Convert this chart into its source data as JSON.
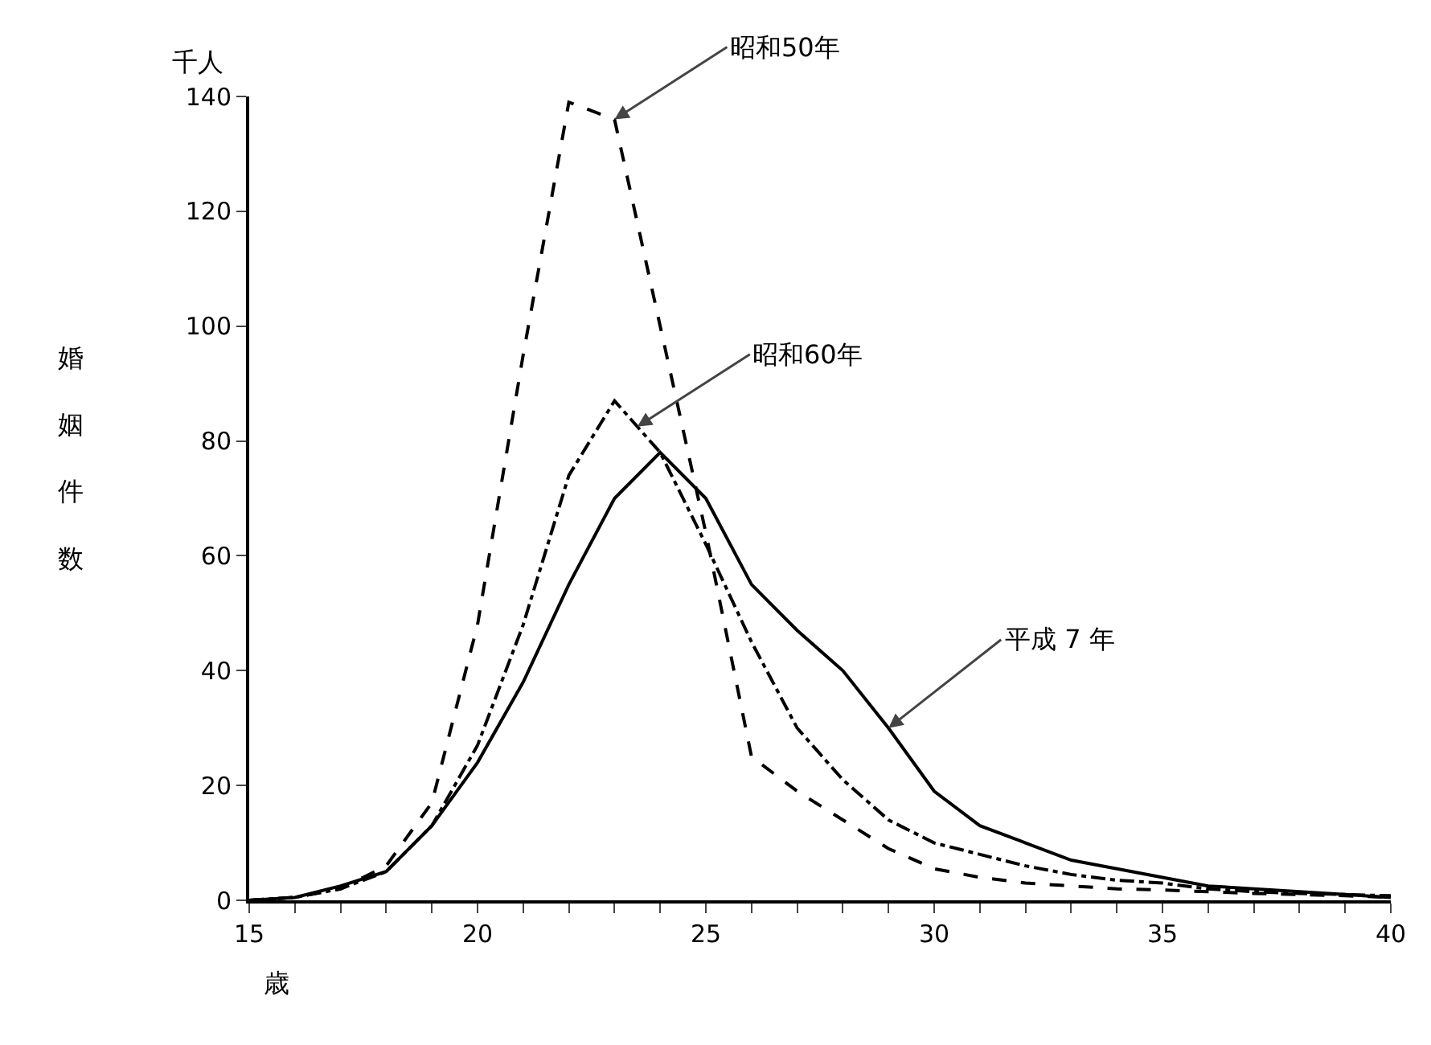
{
  "chart_data": {
    "type": "line",
    "ylabel": "婚姻件数",
    "xlabel": "歳",
    "grid": false,
    "marker": "none",
    "x": [
      15,
      16,
      17,
      18,
      19,
      20,
      21,
      22,
      23,
      24,
      25,
      26,
      27,
      28,
      29,
      30,
      31,
      32,
      33,
      34,
      35,
      36,
      37,
      38,
      39,
      40
    ],
    "xlim": [
      15,
      40
    ],
    "xticks": [
      15,
      {
        "value": 16,
        "label": null
      },
      {
        "value": 17,
        "label": null
      },
      {
        "value": 18,
        "label": null
      },
      {
        "value": 19,
        "label": null
      },
      20,
      {
        "value": 21,
        "label": null
      },
      {
        "value": 22,
        "label": null
      },
      {
        "value": 23,
        "label": null
      },
      {
        "value": 24,
        "label": null
      },
      25,
      {
        "value": 26,
        "label": null
      },
      {
        "value": 27,
        "label": null
      },
      {
        "value": 28,
        "label": null
      },
      {
        "value": 29,
        "label": null
      },
      30,
      {
        "value": 31,
        "label": null
      },
      {
        "value": 32,
        "label": null
      },
      {
        "value": 33,
        "label": null
      },
      {
        "value": 34,
        "label": null
      },
      35,
      {
        "value": 36,
        "label": null
      },
      {
        "value": 37,
        "label": null
      },
      {
        "value": 38,
        "label": null
      },
      {
        "value": 39,
        "label": null
      },
      40
    ],
    "ylim": [
      0,
      140
    ],
    "yticks": [
      0,
      20,
      40,
      60,
      80,
      100,
      120,
      140
    ],
    "series": [
      {
        "color": "#000000",
        "line_style": "dashed",
        "values": [
          0,
          0.5,
          2,
          6,
          17,
          48,
          95,
          139,
          136,
          100,
          64,
          25,
          19,
          14,
          9,
          5.5,
          4,
          3,
          2.5,
          2,
          1.8,
          1.5,
          1.2,
          1,
          0.8,
          0.5
        ]
      },
      {
        "color": "#000000",
        "line_style": "dashdot",
        "values": [
          0,
          0.5,
          2,
          5,
          13,
          27,
          48,
          74,
          87,
          78,
          62,
          45,
          30,
          21,
          14,
          10,
          8,
          6,
          4.5,
          3.5,
          3,
          2,
          1.5,
          1.2,
          1,
          0.8
        ]
      },
      {
        "color": "#000000",
        "line_style": "solid",
        "values": [
          0,
          0.5,
          2.5,
          5,
          13,
          24,
          38,
          55,
          70,
          78,
          70,
          55,
          47,
          40,
          30,
          19,
          13,
          10,
          7,
          5.5,
          4,
          2.5,
          2,
          1.5,
          1,
          0.5
        ]
      }
    ],
    "annotations": [
      "千人",
      {
        "text": "昭和50年",
        "x": 23,
        "y": 136
      },
      {
        "text": "昭和60年",
        "x": 23.5,
        "y": 82.5
      },
      {
        "text": "平成 7 年",
        "x": 29,
        "y": 30
      }
    ]
  }
}
